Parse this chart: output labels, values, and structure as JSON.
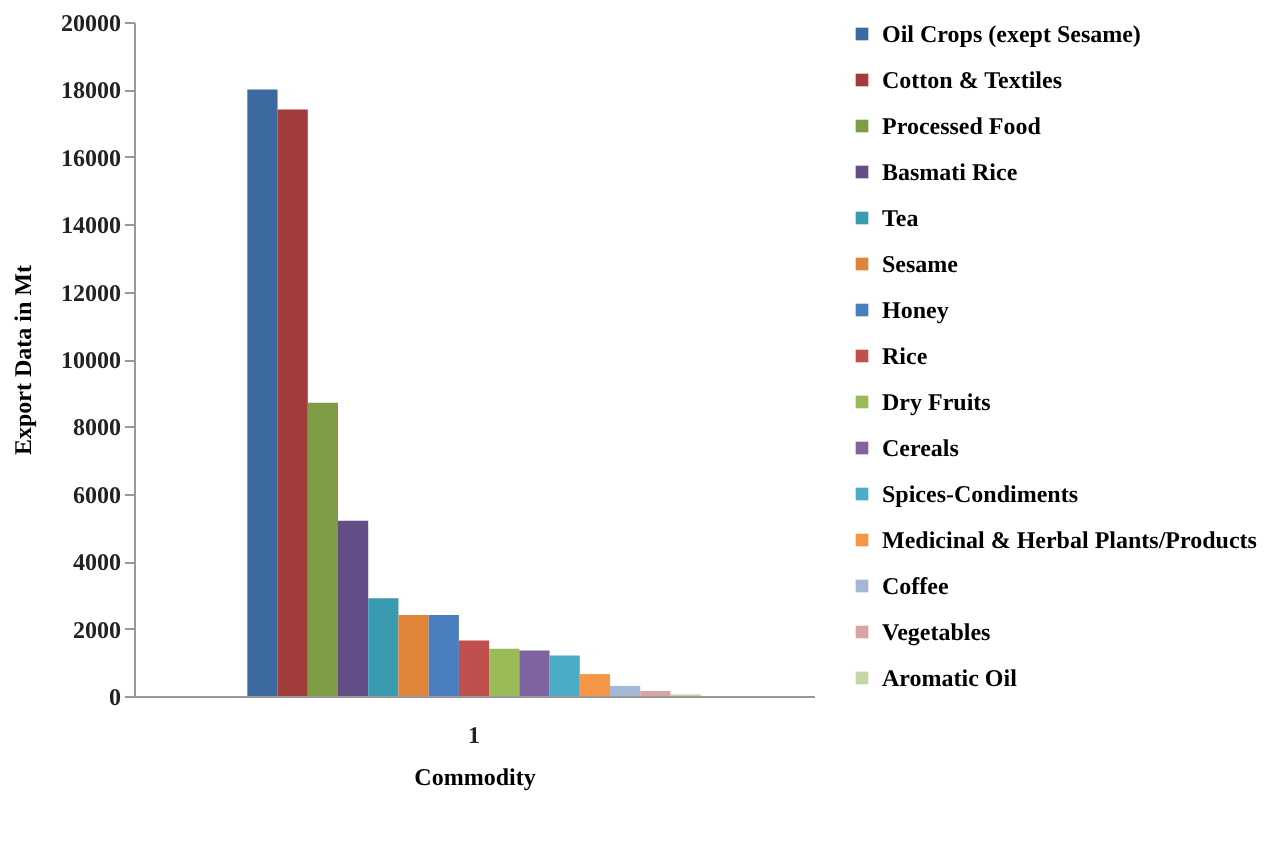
{
  "chart_data": {
    "type": "bar",
    "xlabel": "Commodity",
    "ylabel": "Export Data in Mt",
    "categories": [
      "1"
    ],
    "ylim": [
      0,
      20000
    ],
    "yticks": [
      0,
      2000,
      4000,
      6000,
      8000,
      10000,
      12000,
      14000,
      16000,
      18000,
      20000
    ],
    "grid": false,
    "legend": "right",
    "series": [
      {
        "name": "Oil Crops (exept Sesame)",
        "color": "#3c6aa0",
        "values": [
          18000
        ]
      },
      {
        "name": "Cotton & Textiles",
        "color": "#a03c3a",
        "values": [
          17400
        ]
      },
      {
        "name": "Processed Food",
        "color": "#7e9b45",
        "values": [
          8700
        ]
      },
      {
        "name": "Basmati Rice",
        "color": "#634e87",
        "values": [
          5200
        ]
      },
      {
        "name": "Tea",
        "color": "#3a9ab0",
        "values": [
          2900
        ]
      },
      {
        "name": "Sesame",
        "color": "#e0843a",
        "values": [
          2400
        ]
      },
      {
        "name": "Honey",
        "color": "#4a7ebf",
        "values": [
          2400
        ]
      },
      {
        "name": "Rice",
        "color": "#c0504d",
        "values": [
          1650
        ]
      },
      {
        "name": "Dry Fruits",
        "color": "#9bbb59",
        "values": [
          1400
        ]
      },
      {
        "name": "Cereals",
        "color": "#8064a2",
        "values": [
          1350
        ]
      },
      {
        "name": "Spices-Condiments",
        "color": "#4bacc6",
        "values": [
          1200
        ]
      },
      {
        "name": "Medicinal & Herbal Plants/Products",
        "color": "#f79646",
        "values": [
          650
        ]
      },
      {
        "name": "Coffee",
        "color": "#a5b6d6",
        "values": [
          300
        ]
      },
      {
        "name": "Vegetables",
        "color": "#d9a5a4",
        "values": [
          150
        ]
      },
      {
        "name": "Aromatic Oil",
        "color": "#c5d6a4",
        "values": [
          50
        ]
      }
    ]
  }
}
